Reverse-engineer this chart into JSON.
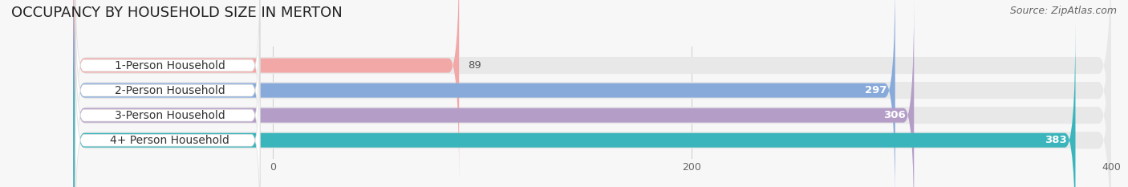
{
  "title": "OCCUPANCY BY HOUSEHOLD SIZE IN MERTON",
  "source": "Source: ZipAtlas.com",
  "categories": [
    "1-Person Household",
    "2-Person Household",
    "3-Person Household",
    "4+ Person Household"
  ],
  "values": [
    89,
    297,
    306,
    383
  ],
  "bar_colors": [
    "#f2a8a6",
    "#88aadb",
    "#b49ec8",
    "#3ab5bc"
  ],
  "track_color": "#e8e8e8",
  "label_bg_color": "#ffffff",
  "xlim": [
    -95,
    400
  ],
  "data_xlim": [
    0,
    400
  ],
  "xticks": [
    0,
    200,
    400
  ],
  "title_fontsize": 13,
  "source_fontsize": 9,
  "label_fontsize": 10,
  "value_fontsize": 9.5,
  "bar_height": 0.58,
  "background_color": "#f7f7f7"
}
